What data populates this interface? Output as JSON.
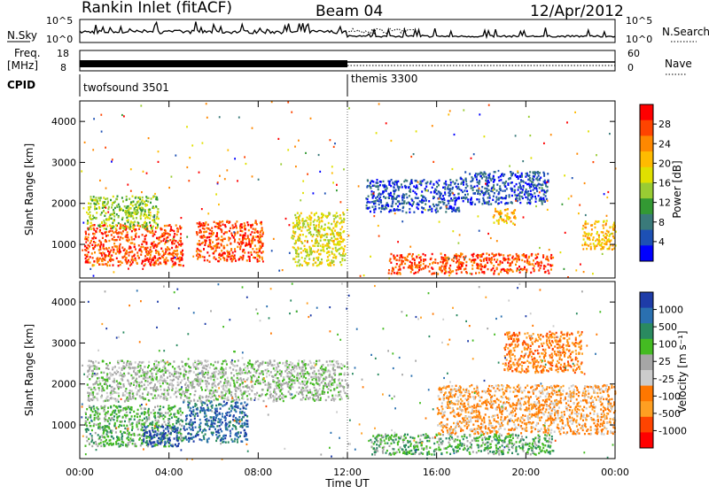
{
  "header": {
    "station": "Rankin Inlet (fitACF)",
    "beam": "Beam 04",
    "date": "12/Apr/2012"
  },
  "top_panels": {
    "nsky_label": "N.Sky",
    "nsky_ticks": [
      "10^5",
      "10^0"
    ],
    "nsearch_label": "N.Search",
    "nsearch_ticks": [
      "10^5",
      "10^0"
    ],
    "freq_label_1": "Freq.",
    "freq_label_2": "[MHz]",
    "freq_ticks": [
      "18",
      "8"
    ],
    "nave_label": "Nave",
    "nave_ticks": [
      "60",
      "0"
    ],
    "cpid_label": "CPID",
    "cpid_segments": [
      {
        "name": "twofsound 3501",
        "start_hour": 0,
        "end_hour": 12
      },
      {
        "name": "themis 3300",
        "start_hour": 12,
        "end_hour": 24
      }
    ]
  },
  "x_axis": {
    "label": "Time UT",
    "ticks": [
      "00:00",
      "04:00",
      "08:00",
      "12:00",
      "16:00",
      "20:00",
      "00:00"
    ],
    "range_hours": [
      0,
      24
    ]
  },
  "power_panel": {
    "ylabel": "Slant Range [km]",
    "yticks": [
      "4000",
      "3000",
      "2000",
      "1000"
    ],
    "colorbar_label": "Power [dB]",
    "colorbar_ticks": [
      "28",
      "24",
      "20",
      "16",
      "12",
      "8",
      "4"
    ],
    "colors": [
      "#ff0000",
      "#ff4400",
      "#ff8800",
      "#ffbb00",
      "#e0e000",
      "#99cc33",
      "#339933",
      "#3a7a7a",
      "#1d50b4",
      "#0000ff"
    ]
  },
  "velocity_panel": {
    "ylabel": "Slant Range [km]",
    "yticks": [
      "4000",
      "3000",
      "2000",
      "1000"
    ],
    "colorbar_label": "Velocity [m s⁻¹]",
    "colorbar_ticks": [
      "1000",
      "500",
      "100",
      "25",
      "-25",
      "-100",
      "-500",
      "-1000"
    ],
    "colors": [
      "#1e3ca8",
      "#2a70b0",
      "#2a8a60",
      "#44bb22",
      "#a6a6a6",
      "#cccccc",
      "#ff7700",
      "#ff9f22",
      "#ff4400",
      "#ff0000"
    ]
  },
  "chart_data": {
    "type": "heatmap",
    "title": "Rankin Inlet (fitACF)",
    "xlabel": "Time UT",
    "ylabel": "Slant Range [km]",
    "xlim_hours": [
      0,
      24
    ],
    "ylim_km": [
      180,
      4500
    ],
    "power_regions": [
      {
        "t0": 0.2,
        "t1": 4.6,
        "r0": 500,
        "r1": 1500,
        "level": 28
      },
      {
        "t0": 5.2,
        "t1": 8.2,
        "r0": 600,
        "r1": 1600,
        "level": 28
      },
      {
        "t0": 0.3,
        "t1": 3.5,
        "r0": 1400,
        "r1": 2200,
        "level": 16
      },
      {
        "t0": 9.5,
        "t1": 11.9,
        "r0": 500,
        "r1": 1800,
        "level": 20
      },
      {
        "t0": 13.8,
        "t1": 21.2,
        "r0": 300,
        "r1": 800,
        "level": 28
      },
      {
        "t0": 22.5,
        "t1": 24.0,
        "r0": 900,
        "r1": 1600,
        "level": 24
      },
      {
        "t0": 18.5,
        "t1": 19.5,
        "r0": 1500,
        "r1": 1900,
        "level": 24
      },
      {
        "t0": 12.8,
        "t1": 17.0,
        "r0": 1800,
        "r1": 2600,
        "level": 8
      },
      {
        "t0": 17.0,
        "t1": 21.0,
        "r0": 2000,
        "r1": 2800,
        "level": 8
      }
    ],
    "velocity_regions": [
      {
        "t0": 0.2,
        "t1": 4.6,
        "r0": 500,
        "r1": 1500,
        "value": 100
      },
      {
        "t0": 2.8,
        "t1": 4.4,
        "r0": 500,
        "r1": 1000,
        "value": 1000
      },
      {
        "t0": 4.6,
        "t1": 7.5,
        "r0": 600,
        "r1": 1600,
        "value": 500
      },
      {
        "t0": 0.3,
        "t1": 12.0,
        "r0": 1600,
        "r1": 2600,
        "value": 0
      },
      {
        "t0": 13.0,
        "t1": 21.2,
        "r0": 300,
        "r1": 800,
        "value": 100
      },
      {
        "t0": 16.0,
        "t1": 24.0,
        "r0": 800,
        "r1": 2000,
        "value": -300
      },
      {
        "t0": 19.0,
        "t1": 22.5,
        "r0": 2300,
        "r1": 3300,
        "value": -100
      }
    ]
  }
}
